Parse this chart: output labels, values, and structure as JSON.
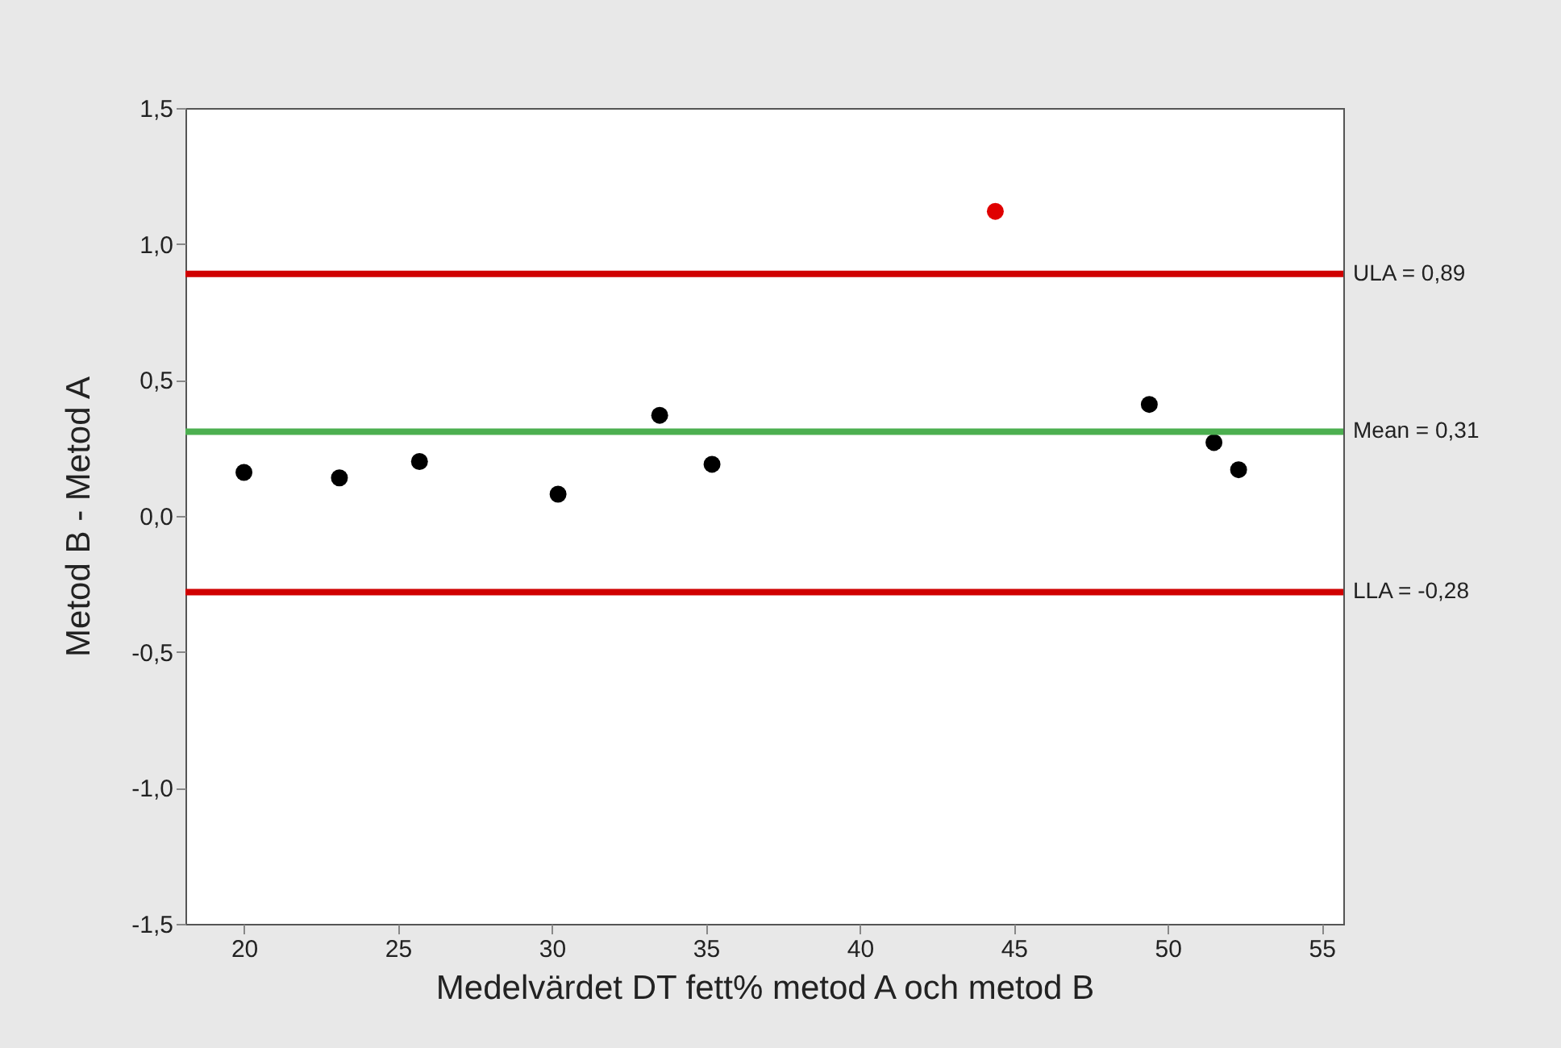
{
  "chart_data": {
    "type": "scatter",
    "xlabel": "Medelvärdet DT fett% metod A och metod B",
    "ylabel": "Metod B - Metod A",
    "x": [
      20.0,
      23.1,
      25.7,
      30.2,
      33.5,
      35.2,
      44.4,
      49.4,
      51.5,
      52.3
    ],
    "values": [
      0.16,
      0.14,
      0.2,
      0.08,
      0.37,
      0.19,
      1.12,
      0.41,
      0.27,
      0.17
    ],
    "colors": [
      "#000000",
      "#000000",
      "#000000",
      "#000000",
      "#000000",
      "#000000",
      "#e00000",
      "#000000",
      "#000000",
      "#000000"
    ],
    "marker": "circle",
    "xlim": [
      18.1,
      55.7
    ],
    "xticks": [
      20,
      25,
      30,
      35,
      40,
      45,
      50,
      55
    ],
    "ylim": [
      -1.5,
      1.5
    ],
    "yticks": [
      {
        "value": -1.5,
        "label": "-1,5"
      },
      {
        "value": -1.0,
        "label": "-1,0"
      },
      {
        "value": -0.5,
        "label": "-0,5"
      },
      {
        "value": 0,
        "label": "0,0"
      },
      {
        "value": 0.5,
        "label": "0,5"
      },
      {
        "value": 1.0,
        "label": "1,0"
      },
      {
        "value": 1.5,
        "label": "1,5"
      }
    ],
    "ref_lines": [
      {
        "axis": "y",
        "value": 0.89,
        "label": "ULA = 0,89",
        "color": "#d00000"
      },
      {
        "axis": "y",
        "value": 0.31,
        "label": "Mean = 0,31",
        "color": "#4caf50"
      },
      {
        "axis": "y",
        "value": -0.28,
        "label": "LLA = -0,28",
        "color": "#d00000"
      }
    ]
  }
}
